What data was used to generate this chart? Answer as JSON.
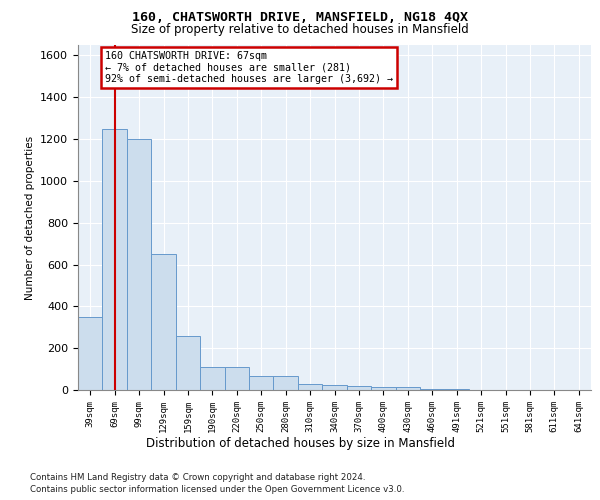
{
  "title1": "160, CHATSWORTH DRIVE, MANSFIELD, NG18 4QX",
  "title2": "Size of property relative to detached houses in Mansfield",
  "xlabel": "Distribution of detached houses by size in Mansfield",
  "ylabel": "Number of detached properties",
  "footnote1": "Contains HM Land Registry data © Crown copyright and database right 2024.",
  "footnote2": "Contains public sector information licensed under the Open Government Licence v3.0.",
  "categories": [
    "39sqm",
    "69sqm",
    "99sqm",
    "129sqm",
    "159sqm",
    "190sqm",
    "220sqm",
    "250sqm",
    "280sqm",
    "310sqm",
    "340sqm",
    "370sqm",
    "400sqm",
    "430sqm",
    "460sqm",
    "491sqm",
    "521sqm",
    "551sqm",
    "581sqm",
    "611sqm",
    "641sqm"
  ],
  "values": [
    350,
    1250,
    1200,
    650,
    260,
    110,
    110,
    65,
    65,
    30,
    25,
    18,
    12,
    12,
    5,
    3,
    0,
    0,
    0,
    0,
    0
  ],
  "bar_color": "#ccdded",
  "bar_edge_color": "#6699cc",
  "ann_edge_color": "#cc0000",
  "ann_text_l1": "160 CHATSWORTH DRIVE: 67sqm",
  "ann_text_l2": "← 7% of detached houses are smaller (281)",
  "ann_text_l3": "92% of semi-detached houses are larger (3,692) →",
  "vline_x": 1.0,
  "vline_color": "#cc0000",
  "ylim": [
    0,
    1650
  ],
  "yticks": [
    0,
    200,
    400,
    600,
    800,
    1000,
    1200,
    1400,
    1600
  ],
  "bg_color": "#e8f0f8",
  "grid_color": "#ffffff"
}
